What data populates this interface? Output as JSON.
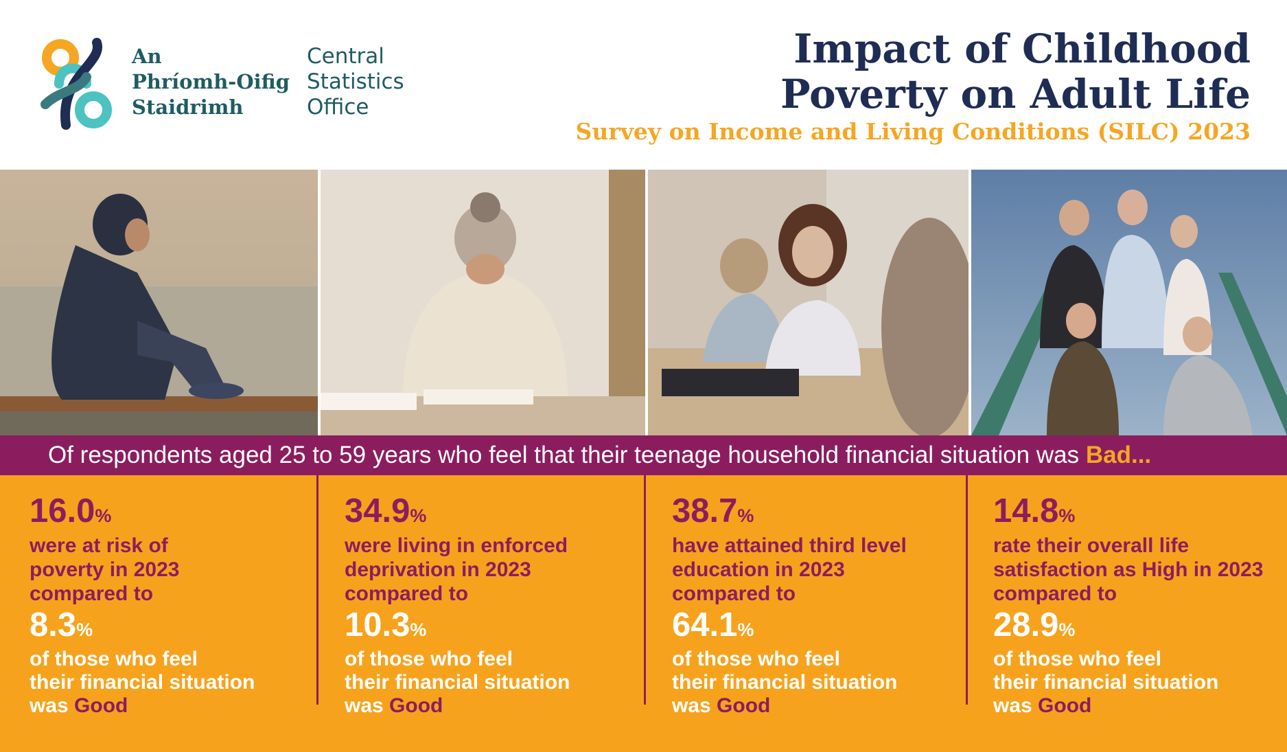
{
  "org": {
    "irish_lines": [
      "An",
      "Phríomh-Oifig",
      "Staidrimh"
    ],
    "english_lines": [
      "Central",
      "Statistics",
      "Office"
    ]
  },
  "header": {
    "title_lines": [
      "Impact of Childhood",
      "Poverty on Adult Life"
    ],
    "subtitle": "Survey on Income and Living Conditions (SILC) 2023"
  },
  "banner": {
    "text": "Of respondents aged 25 to 59 years who feel that their teenage household financial situation was ",
    "emphasis": "Bad..."
  },
  "stats": [
    {
      "value": "16.0",
      "unit": "%",
      "desc_lines": [
        "were at risk of",
        "poverty in 2023",
        "compared to"
      ],
      "compare_value": "8.3",
      "compare_unit": "%",
      "compare_lines": [
        "of those who feel",
        "their financial situation"
      ],
      "last_prefix": "was ",
      "last_emphasis": "Good"
    },
    {
      "value": "34.9",
      "unit": "%",
      "desc_lines": [
        "were living in enforced",
        "deprivation in 2023",
        "compared to"
      ],
      "compare_value": "10.3",
      "compare_unit": "%",
      "compare_lines": [
        "of those who feel",
        "their financial situation"
      ],
      "last_prefix": "was ",
      "last_emphasis": "Good"
    },
    {
      "value": "38.7",
      "unit": "%",
      "desc_lines": [
        "have attained third level",
        "education in 2023",
        "compared to"
      ],
      "compare_value": "64.1",
      "compare_unit": "%",
      "compare_lines": [
        "of those who feel",
        "their financial situation"
      ],
      "last_prefix": "was ",
      "last_emphasis": "Good"
    },
    {
      "value": "14.8",
      "unit": "%",
      "desc_lines": [
        "rate their overall life",
        "satisfaction as High in 2023",
        "compared to"
      ],
      "compare_value": "28.9",
      "compare_unit": "%",
      "compare_lines": [
        "of those who feel",
        "their financial situation"
      ],
      "last_prefix": "was ",
      "last_emphasis": "Good"
    }
  ],
  "colors": {
    "navy": "#1f2d55",
    "teal": "#1f5c62",
    "orange": "#f7a21c",
    "plum": "#8b1d5f"
  },
  "photos": [
    {
      "icon": "teen-sitting-on-bench-photo"
    },
    {
      "icon": "girl-wrapped-in-blanket-photo"
    },
    {
      "icon": "students-in-classroom-photo"
    },
    {
      "icon": "group-of-teens-on-stairs-photo"
    }
  ]
}
